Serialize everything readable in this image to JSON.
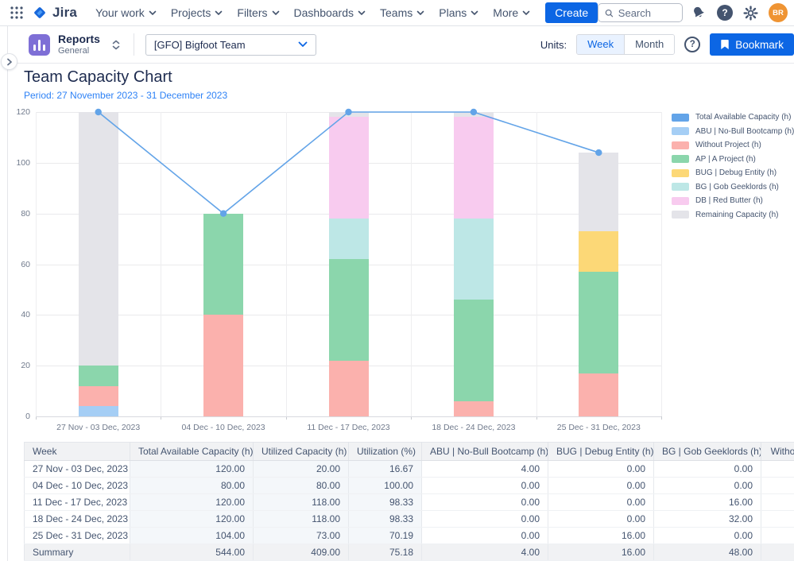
{
  "icons": {
    "question": "?"
  },
  "topnav": {
    "brand": "Jira",
    "items": [
      {
        "label": "Your work"
      },
      {
        "label": "Projects"
      },
      {
        "label": "Filters"
      },
      {
        "label": "Dashboards"
      },
      {
        "label": "Teams"
      },
      {
        "label": "Plans"
      },
      {
        "label": "More"
      }
    ],
    "create_label": "Create",
    "search_placeholder": "Search",
    "avatar_initials": "BR"
  },
  "header": {
    "app_title": "Reports",
    "app_subtitle": "General",
    "team_selector_value": "[GFO] Bigfoot Team",
    "units_label": "Units:",
    "unit_options": [
      "Week",
      "Month"
    ],
    "selected_unit": "Week",
    "bookmark_label": "Bookmark"
  },
  "page": {
    "title": "Team Capacity Chart",
    "period": "Period: 27 November 2023 - 31 December 2023"
  },
  "chart_data": {
    "type": "bar",
    "stacked": true,
    "title": "Team Capacity Chart",
    "subtitle": "Period: 27 November 2023 - 31 December 2023",
    "categories": [
      "27 Nov - 03 Dec, 2023",
      "04 Dec - 10 Dec, 2023",
      "11 Dec - 17 Dec, 2023",
      "18 Dec - 24 Dec, 2023",
      "25 Dec - 31 Dec, 2023"
    ],
    "bar_series": [
      {
        "name": "ABU | No-Bull Bootcamp (h)",
        "color": "#A5CEF5",
        "values": [
          4,
          0,
          0,
          0,
          0
        ]
      },
      {
        "name": "Without Project (h)",
        "color": "#FBB1AD",
        "values": [
          8,
          40,
          22,
          6,
          17
        ]
      },
      {
        "name": "AP | A Project (h)",
        "color": "#8BD6AC",
        "values": [
          8,
          40,
          40,
          40,
          40
        ]
      },
      {
        "name": "BUG | Debug Entity (h)",
        "color": "#FCD877",
        "values": [
          0,
          0,
          0,
          0,
          16
        ]
      },
      {
        "name": "BG | Gob Geeklords (h)",
        "color": "#BDE7E6",
        "values": [
          0,
          0,
          16,
          32,
          0
        ]
      },
      {
        "name": "DB | Red Butter (h)",
        "color": "#F8CBEF",
        "values": [
          0,
          0,
          40,
          40,
          0
        ]
      },
      {
        "name": "Remaining Capacity (h)",
        "color": "#E4E4E9",
        "values": [
          100,
          0,
          2,
          2,
          31
        ]
      }
    ],
    "line_series": {
      "name": "Total Available Capacity (h)",
      "color": "#63A4E8",
      "values": [
        120,
        80,
        120,
        120,
        104
      ]
    },
    "legend": [
      {
        "label": "Total Available Capacity (h)",
        "color": "#63A4E8"
      },
      {
        "label": "ABU | No-Bull Bootcamp (h)",
        "color": "#A5CEF5"
      },
      {
        "label": "Without Project (h)",
        "color": "#FBB1AD"
      },
      {
        "label": "AP | A Project (h)",
        "color": "#8BD6AC"
      },
      {
        "label": "BUG | Debug Entity (h)",
        "color": "#FCD877"
      },
      {
        "label": "BG | Gob Geeklords (h)",
        "color": "#BDE7E6"
      },
      {
        "label": "DB | Red Butter (h)",
        "color": "#F8CBEF"
      },
      {
        "label": "Remaining Capacity (h)",
        "color": "#E4E4E9"
      }
    ],
    "legend_position": "right",
    "grid": true,
    "ylim": [
      0,
      120
    ],
    "yticks": [
      0,
      20,
      40,
      60,
      80,
      100,
      120
    ]
  },
  "table": {
    "headers": [
      "Week",
      "Total Available Capacity (h)",
      "Utilized Capacity (h)",
      "Utilization (%)",
      "ABU | No-Bull Bootcamp (h)",
      "BUG | Debug Entity (h)",
      "BG | Gob Geeklords (h)",
      "Without Project (h)"
    ],
    "rows": [
      [
        "27 Nov - 03 Dec, 2023",
        "120.00",
        "20.00",
        "16.67",
        "4.00",
        "0.00",
        "0.00",
        ""
      ],
      [
        "04 Dec - 10 Dec, 2023",
        "80.00",
        "80.00",
        "100.00",
        "0.00",
        "0.00",
        "0.00",
        ""
      ],
      [
        "11 Dec - 17 Dec, 2023",
        "120.00",
        "118.00",
        "98.33",
        "0.00",
        "0.00",
        "16.00",
        ""
      ],
      [
        "18 Dec - 24 Dec, 2023",
        "120.00",
        "118.00",
        "98.33",
        "0.00",
        "0.00",
        "32.00",
        ""
      ],
      [
        "25 Dec - 31 Dec, 2023",
        "104.00",
        "73.00",
        "70.19",
        "0.00",
        "16.00",
        "0.00",
        ""
      ]
    ],
    "summary_row": [
      "Summary",
      "544.00",
      "409.00",
      "75.18",
      "4.00",
      "16.00",
      "48.00",
      ""
    ]
  }
}
